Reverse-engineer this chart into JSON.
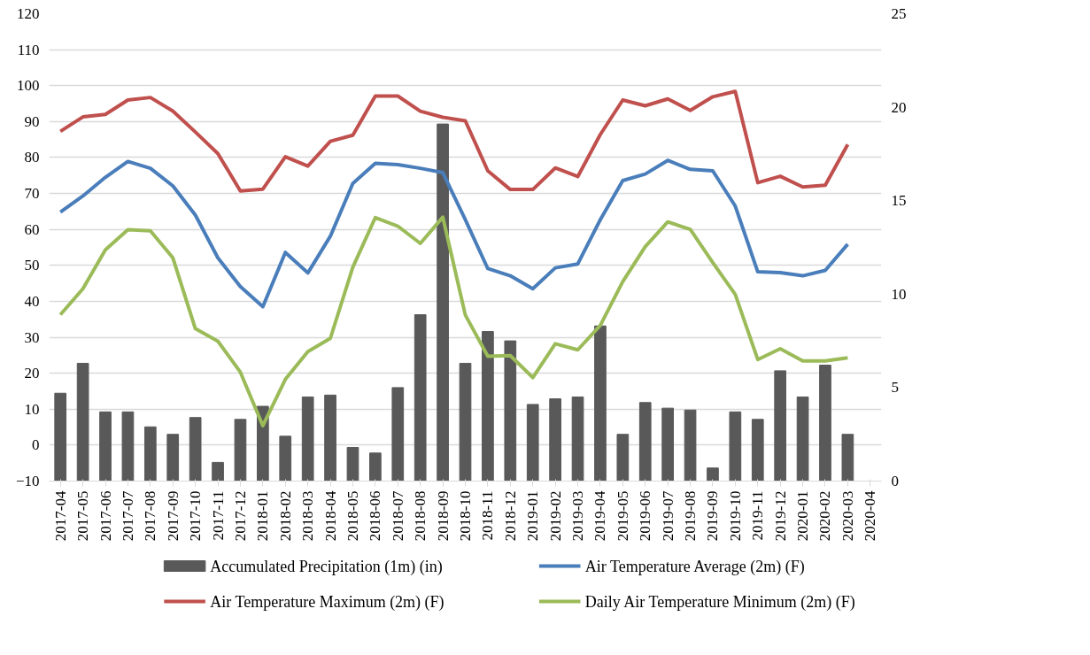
{
  "chart_data": {
    "type": "line",
    "categories": [
      "2017-04",
      "2017-05",
      "2017-06",
      "2017-07",
      "2017-08",
      "2017-09",
      "2017-10",
      "2017-11",
      "2017-12",
      "2018-01",
      "2018-02",
      "2018-03",
      "2018-04",
      "2018-05",
      "2018-06",
      "2018-07",
      "2018-08",
      "2018-09",
      "2018-10",
      "2018-11",
      "2018-12",
      "2019-01",
      "2019-02",
      "2019-03",
      "2019-04",
      "2019-05",
      "2019-06",
      "2019-07",
      "2019-08",
      "2019-09",
      "2019-10",
      "2019-11",
      "2019-12",
      "2020-01",
      "2020-02",
      "2020-03",
      "2020-04"
    ],
    "series": [
      {
        "name": "Accumulated Precipitation  (1m) (in)",
        "type": "bar",
        "axis": "y2",
        "color": "#595959",
        "values": [
          4.7,
          6.3,
          3.7,
          3.7,
          2.9,
          2.5,
          3.4,
          1.0,
          3.3,
          4.0,
          2.4,
          4.5,
          4.6,
          1.8,
          1.5,
          5.0,
          8.9,
          19.1,
          6.3,
          8.0,
          7.5,
          4.1,
          4.4,
          4.5,
          8.3,
          2.5,
          4.2,
          3.9,
          3.8,
          0.7,
          3.7,
          3.3,
          5.9,
          4.5,
          6.2,
          2.5,
          null
        ]
      },
      {
        "name": "Air Temperature Average (2m) (F)",
        "color": "#4a7ebb",
        "values": [
          64.8,
          69.3,
          74.5,
          78.9,
          77.0,
          72.1,
          64.0,
          52.1,
          44.1,
          38.5,
          53.6,
          47.9,
          58.1,
          72.8,
          78.4,
          78.0,
          77.0,
          75.8,
          62.7,
          49.1,
          47.1,
          43.5,
          49.3,
          50.4,
          62.7,
          73.6,
          75.4,
          79.2,
          76.7,
          76.3,
          66.5,
          48.2,
          48.0,
          47.1,
          48.6,
          55.9,
          null
        ]
      },
      {
        "name": "Air Temperature Maximum (2m) (F)",
        "color": "#c0504d",
        "values": [
          87.3,
          91.3,
          92.0,
          96.0,
          96.7,
          92.9,
          87.1,
          81.1,
          70.7,
          71.2,
          80.2,
          77.6,
          84.5,
          86.2,
          97.1,
          97.1,
          92.9,
          91.2,
          90.2,
          76.3,
          71.1,
          71.1,
          77.1,
          74.7,
          86.4,
          96.0,
          94.4,
          96.3,
          93.1,
          96.9,
          98.4,
          73.0,
          74.8,
          71.8,
          72.3,
          83.6,
          null
        ]
      },
      {
        "name": "Daily Air Temperature Minimum (2m) (F)",
        "color": "#9bbb59",
        "values": [
          36.3,
          43.5,
          54.3,
          59.9,
          59.6,
          52.1,
          32.4,
          28.9,
          20.3,
          5.4,
          18.3,
          26.0,
          29.7,
          49.5,
          63.3,
          60.9,
          56.1,
          63.4,
          36.2,
          24.7,
          24.9,
          18.8,
          28.2,
          26.5,
          33.3,
          45.5,
          55.2,
          62.1,
          60.0,
          50.8,
          41.9,
          23.8,
          26.8,
          23.4,
          23.4,
          24.3,
          null
        ]
      }
    ],
    "ylim": [
      -10,
      120
    ],
    "yticks": [
      -10,
      0,
      10,
      20,
      30,
      40,
      50,
      60,
      70,
      80,
      90,
      100,
      110,
      120
    ],
    "y2lim": [
      0,
      25
    ],
    "y2ticks": [
      0,
      5,
      10,
      15,
      20,
      25
    ],
    "grid": "y",
    "legend": "bottom"
  }
}
